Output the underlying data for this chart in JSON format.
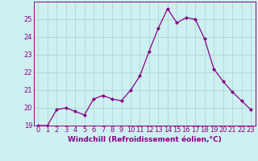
{
  "x": [
    0,
    1,
    2,
    3,
    4,
    5,
    6,
    7,
    8,
    9,
    10,
    11,
    12,
    13,
    14,
    15,
    16,
    17,
    18,
    19,
    20,
    21,
    22,
    23
  ],
  "y": [
    19.0,
    19.0,
    19.9,
    20.0,
    19.8,
    19.6,
    20.5,
    20.7,
    20.5,
    20.4,
    21.0,
    21.8,
    23.2,
    24.5,
    25.6,
    24.8,
    25.1,
    25.0,
    23.9,
    22.2,
    21.5,
    20.9,
    20.4,
    19.9
  ],
  "line_color": "#880088",
  "marker": "D",
  "marker_size": 2.0,
  "bg_color": "#cef0f0",
  "grid_color": "#aad8d8",
  "xlabel": "Windchill (Refroidissement éolien,°C)",
  "xlim_min": -0.5,
  "xlim_max": 23.5,
  "ylim": [
    19,
    26
  ],
  "yticks": [
    19,
    20,
    21,
    22,
    23,
    24,
    25
  ],
  "xtick_labels": [
    "0",
    "1",
    "2",
    "3",
    "4",
    "5",
    "6",
    "7",
    "8",
    "9",
    "10",
    "11",
    "12",
    "13",
    "14",
    "15",
    "16",
    "17",
    "18",
    "19",
    "20",
    "21",
    "22",
    "23"
  ],
  "label_fontsize": 6.5,
  "tick_fontsize": 6.0
}
